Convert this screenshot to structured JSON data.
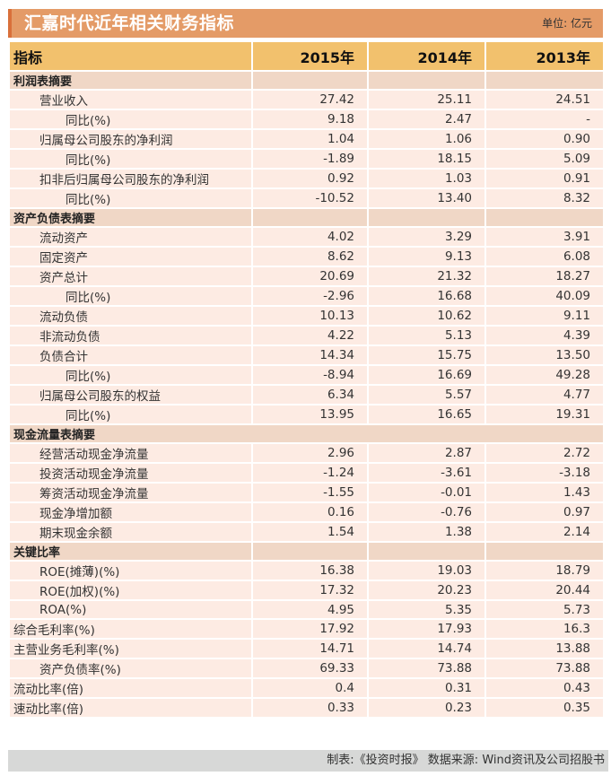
{
  "header": {
    "title": "汇嘉时代近年相关财务指标",
    "unit": "单位: 亿元"
  },
  "colors": {
    "title_bar": "#e49b67",
    "title_accent": "#d9703a",
    "header_row": "#f2c16d",
    "section_row": "#f0d7c6",
    "data_row": "#fdebe3",
    "footer": "#d7d8d7"
  },
  "table": {
    "columns": [
      "指标",
      "2015年",
      "2014年",
      "2013年"
    ],
    "sections": [
      {
        "title": "利润表摘要",
        "rows": [
          {
            "label": "营业收入",
            "level": 1,
            "values": [
              "27.42",
              "25.11",
              "24.51"
            ]
          },
          {
            "label": "同比(%)",
            "level": 2,
            "values": [
              "9.18",
              "2.47",
              "-"
            ]
          },
          {
            "label": "归属母公司股东的净利润",
            "level": 1,
            "values": [
              "1.04",
              "1.06",
              "0.90"
            ]
          },
          {
            "label": "同比(%)",
            "level": 2,
            "values": [
              "-1.89",
              "18.15",
              "5.09"
            ]
          },
          {
            "label": "扣非后归属母公司股东的净利润",
            "level": 1,
            "values": [
              "0.92",
              "1.03",
              "0.91"
            ]
          },
          {
            "label": "同比(%)",
            "level": 2,
            "values": [
              "-10.52",
              "13.40",
              "8.32"
            ]
          }
        ]
      },
      {
        "title": "资产负债表摘要",
        "rows": [
          {
            "label": "流动资产",
            "level": 1,
            "values": [
              "4.02",
              "3.29",
              "3.91"
            ]
          },
          {
            "label": "固定资产",
            "level": 1,
            "values": [
              "8.62",
              "9.13",
              "6.08"
            ]
          },
          {
            "label": "资产总计",
            "level": 1,
            "values": [
              "20.69",
              "21.32",
              "18.27"
            ]
          },
          {
            "label": "同比(%)",
            "level": 2,
            "values": [
              "-2.96",
              "16.68",
              "40.09"
            ]
          },
          {
            "label": "流动负债",
            "level": 1,
            "values": [
              "10.13",
              "10.62",
              "9.11"
            ]
          },
          {
            "label": "非流动负债",
            "level": 1,
            "values": [
              "4.22",
              "5.13",
              "4.39"
            ]
          },
          {
            "label": "负债合计",
            "level": 1,
            "values": [
              "14.34",
              "15.75",
              "13.50"
            ]
          },
          {
            "label": "同比(%)",
            "level": 2,
            "values": [
              "-8.94",
              "16.69",
              "49.28"
            ]
          },
          {
            "label": "归属母公司股东的权益",
            "level": 1,
            "values": [
              "6.34",
              "5.57",
              "4.77"
            ]
          },
          {
            "label": "同比(%)",
            "level": 2,
            "values": [
              "13.95",
              "16.65",
              "19.31"
            ]
          }
        ]
      },
      {
        "title": "现金流量表摘要",
        "merged": true,
        "rows": [
          {
            "label": "经营活动现金净流量",
            "level": 1,
            "values": [
              "2.96",
              "2.87",
              "2.72"
            ]
          },
          {
            "label": "投资活动现金净流量",
            "level": 1,
            "values": [
              "-1.24",
              "-3.61",
              "-3.18"
            ]
          },
          {
            "label": "筹资活动现金净流量",
            "level": 1,
            "values": [
              "-1.55",
              "-0.01",
              "1.43"
            ]
          },
          {
            "label": "现金净增加额",
            "level": 1,
            "values": [
              "0.16",
              "-0.76",
              "0.97"
            ]
          },
          {
            "label": "期末现金余额",
            "level": 1,
            "values": [
              "1.54",
              "1.38",
              "2.14"
            ]
          }
        ]
      },
      {
        "title": "关键比率",
        "rows": [
          {
            "label": "ROE(摊薄)(%)",
            "level": 1,
            "values": [
              "16.38",
              "19.03",
              "18.79"
            ]
          },
          {
            "label": "ROE(加权)(%)",
            "level": 1,
            "values": [
              "17.32",
              "20.23",
              "20.44"
            ]
          },
          {
            "label": "ROA(%)",
            "level": 1,
            "values": [
              "4.95",
              "5.35",
              "5.73"
            ]
          },
          {
            "label": "综合毛利率(%)",
            "level": 0,
            "values": [
              "17.92",
              "17.93",
              "16.3"
            ]
          },
          {
            "label": "主营业务毛利率(%)",
            "level": 0,
            "values": [
              "14.71",
              "14.74",
              "13.88"
            ]
          },
          {
            "label": "资产负债率(%)",
            "level": 1,
            "values": [
              "69.33",
              "73.88",
              "73.88"
            ]
          },
          {
            "label": "流动比率(倍)",
            "level": 0,
            "values": [
              "0.4",
              "0.31",
              "0.43"
            ]
          },
          {
            "label": "速动比率(倍)",
            "level": 0,
            "values": [
              "0.33",
              "0.23",
              "0.35"
            ]
          }
        ]
      }
    ]
  },
  "footer": {
    "source": "制表:《投资时报》 数据来源: Wind资讯及公司招股书"
  }
}
